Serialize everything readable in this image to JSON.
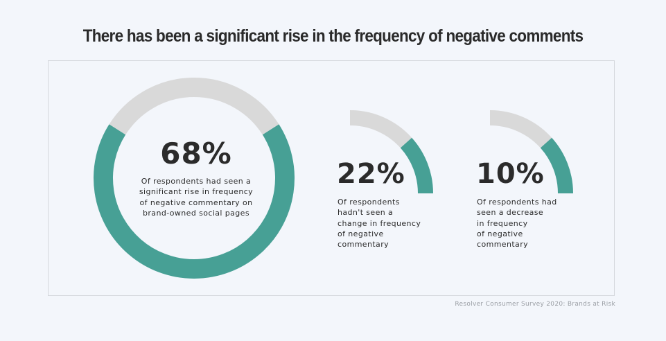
{
  "title": "There has been a significant rise in the frequency of negative comments",
  "source": "Resolver Consumer Survey 2020: Brands at Risk",
  "colors": {
    "accent": "#47a095",
    "track": "#d9d9d9",
    "background": "#f3f6fb"
  },
  "chart_data": {
    "type": "pie",
    "values": [
      68,
      22,
      10
    ],
    "labels": [
      "68%",
      "22%",
      "10%"
    ],
    "descriptions": [
      [
        "Of respondents had seen a",
        "significant rise in frequency",
        "of negative commentary on",
        "brand-owned social pages"
      ],
      [
        "Of respondents",
        "hadn't seen a",
        "change in frequency",
        "of negative",
        "commentary"
      ],
      [
        "Of respondents had",
        "seen a decrease",
        "in frequency",
        "of negative",
        "commentary"
      ]
    ]
  }
}
